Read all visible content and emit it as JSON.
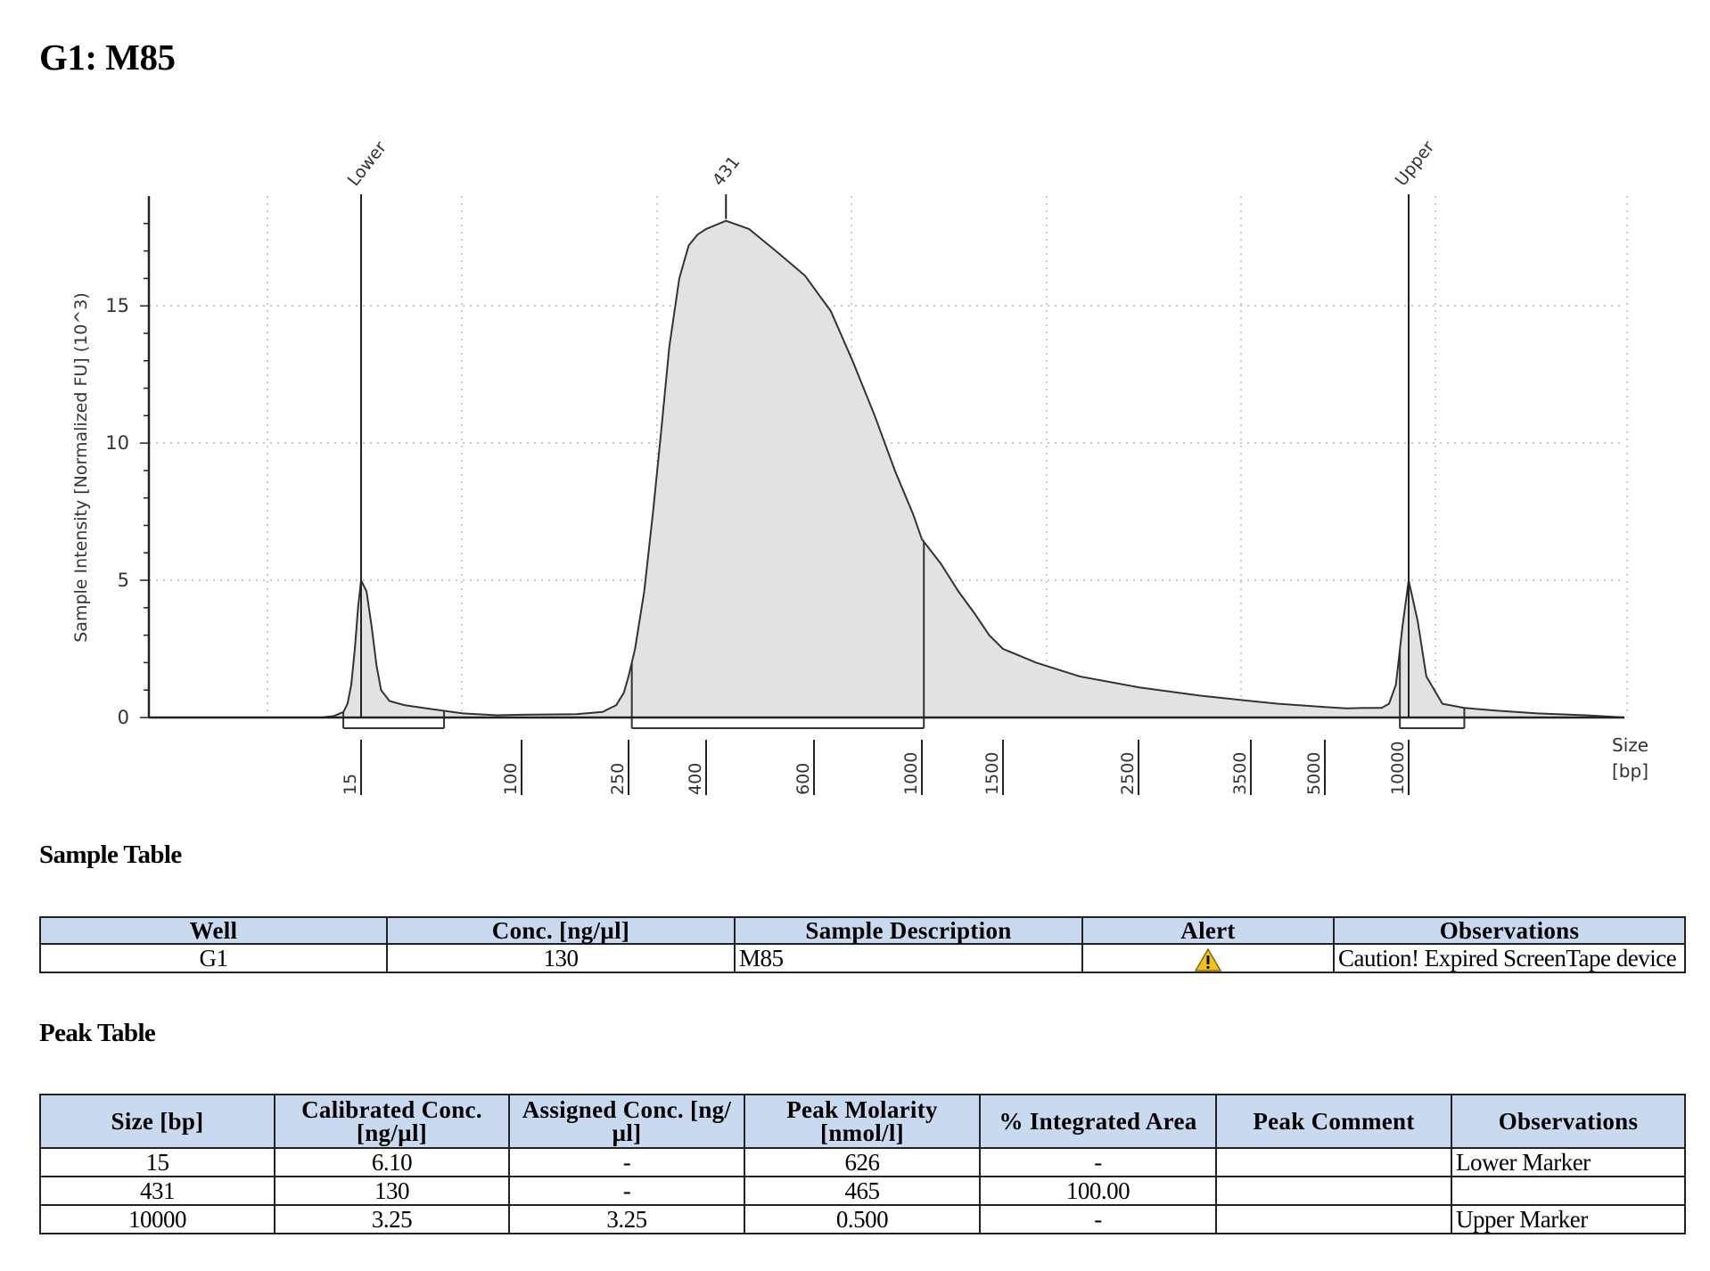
{
  "title": "G1: M85",
  "chart_data": {
    "type": "area",
    "ylabel": "Sample Intensity [Normalized FU] (10^3)",
    "xlabel": "Size [bp]",
    "x_ticks": [
      "15",
      "100",
      "250",
      "400",
      "600",
      "1000",
      "1500",
      "2500",
      "3500",
      "5000",
      "10000"
    ],
    "y_ticks": [
      0,
      5,
      10,
      15
    ],
    "ylim": [
      0,
      19
    ],
    "grid": true,
    "peaks": [
      {
        "label": "Lower",
        "size_bp": 15,
        "intensity": 5.0
      },
      {
        "label": "431",
        "size_bp": 431,
        "intensity": 18.1
      },
      {
        "label": "Upper",
        "size_bp": 10000,
        "intensity": 5.0
      }
    ],
    "regions": [
      {
        "from_bp": 10,
        "to_bp": 40
      },
      {
        "from_bp": 255,
        "to_bp": 1010
      },
      {
        "from_bp": 9300,
        "to_bp": 13500
      }
    ],
    "trace": [
      [
        6,
        0.0
      ],
      [
        8,
        0.05
      ],
      [
        10,
        0.2
      ],
      [
        11,
        0.5
      ],
      [
        12,
        1.2
      ],
      [
        13,
        2.5
      ],
      [
        14,
        4.0
      ],
      [
        15,
        5.0
      ],
      [
        16,
        4.6
      ],
      [
        17,
        3.3
      ],
      [
        18,
        1.9
      ],
      [
        19,
        1.0
      ],
      [
        21,
        0.6
      ],
      [
        25,
        0.45
      ],
      [
        35,
        0.3
      ],
      [
        50,
        0.15
      ],
      [
        75,
        0.08
      ],
      [
        100,
        0.1
      ],
      [
        160,
        0.12
      ],
      [
        200,
        0.2
      ],
      [
        225,
        0.45
      ],
      [
        240,
        0.9
      ],
      [
        250,
        1.5
      ],
      [
        260,
        2.5
      ],
      [
        275,
        4.6
      ],
      [
        290,
        7.5
      ],
      [
        305,
        10.5
      ],
      [
        320,
        13.5
      ],
      [
        340,
        16.0
      ],
      [
        360,
        17.2
      ],
      [
        380,
        17.6
      ],
      [
        400,
        17.8
      ],
      [
        431,
        18.1
      ],
      [
        470,
        17.8
      ],
      [
        520,
        17.0
      ],
      [
        580,
        16.1
      ],
      [
        650,
        14.8
      ],
      [
        720,
        13.0
      ],
      [
        800,
        11.0
      ],
      [
        880,
        9.0
      ],
      [
        960,
        7.4
      ],
      [
        1000,
        6.5
      ],
      [
        1100,
        5.6
      ],
      [
        1200,
        4.6
      ],
      [
        1300,
        3.8
      ],
      [
        1400,
        3.0
      ],
      [
        1500,
        2.5
      ],
      [
        1700,
        2.0
      ],
      [
        2000,
        1.5
      ],
      [
        2500,
        1.1
      ],
      [
        3000,
        0.8
      ],
      [
        3500,
        0.6
      ],
      [
        4000,
        0.5
      ],
      [
        5000,
        0.38
      ],
      [
        6000,
        0.33
      ],
      [
        7000,
        0.35
      ],
      [
        8000,
        0.35
      ],
      [
        8500,
        0.5
      ],
      [
        9000,
        1.2
      ],
      [
        9500,
        3.3
      ],
      [
        10000,
        5.0
      ],
      [
        10500,
        3.5
      ],
      [
        11000,
        1.5
      ],
      [
        12000,
        0.5
      ],
      [
        13500,
        0.35
      ],
      [
        16000,
        0.25
      ],
      [
        20000,
        0.15
      ],
      [
        26000,
        0.08
      ],
      [
        32000,
        0.0
      ]
    ]
  },
  "sample_table": {
    "title": "Sample Table",
    "headers": [
      "Well",
      "Conc. [ng/µl]",
      "Sample Description",
      "Alert",
      "Observations"
    ],
    "row": {
      "well": "G1",
      "conc": "130",
      "description": "M85",
      "alert_icon": "warning-icon",
      "observations": "Caution! Expired ScreenTape device"
    }
  },
  "peak_table": {
    "title": "Peak Table",
    "headers": [
      "Size [bp]",
      "Calibrated Conc. [ng/µl]",
      "Assigned Conc. [ng/µl]",
      "Peak Molarity [nmol/l]",
      "% Integrated Area",
      "Peak Comment",
      "Observations"
    ],
    "rows": [
      [
        "15",
        "6.10",
        "-",
        "626",
        "-",
        "",
        "Lower Marker"
      ],
      [
        "431",
        "130",
        "-",
        "465",
        "100.00",
        "",
        ""
      ],
      [
        "10000",
        "3.25",
        "3.25",
        "0.500",
        "-",
        "",
        "Upper Marker"
      ]
    ]
  },
  "colors": {
    "area_fill": "#e2e2e2",
    "line": "#333333",
    "header_bg": "#c9d9ef",
    "warning": "#f0c020"
  }
}
